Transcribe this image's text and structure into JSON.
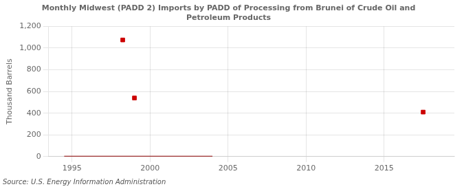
{
  "chart_data": {
    "type": "scatter",
    "title": "Monthly Midwest (PADD 2) Imports by PADD of Processing from Brunei of Crude Oil and\nPetroleum Products",
    "ylabel": "Thousand Barrels",
    "source": "Source: U.S. Energy Information Administration",
    "xlim": [
      1993.5,
      2019.5
    ],
    "xticks": [
      1995,
      2000,
      2005,
      2010,
      2015
    ],
    "ylim": [
      0,
      1200
    ],
    "yticks": [
      0,
      200,
      400,
      600,
      800,
      {
        "value": 1000,
        "label": "1,000"
      },
      {
        "value": 1200,
        "label": "1,200"
      }
    ],
    "grid": true,
    "series": [
      {
        "type": "line",
        "line_style": "solid",
        "color": "#8b0000",
        "x": [
          1994.5,
          2004.0
        ],
        "values": [
          0,
          0
        ]
      },
      {
        "type": "scatter",
        "marker": "square",
        "color": "#cc0000",
        "x": [
          1998.25,
          1999.0,
          2017.5
        ],
        "values": [
          1075,
          540,
          410
        ]
      }
    ]
  }
}
